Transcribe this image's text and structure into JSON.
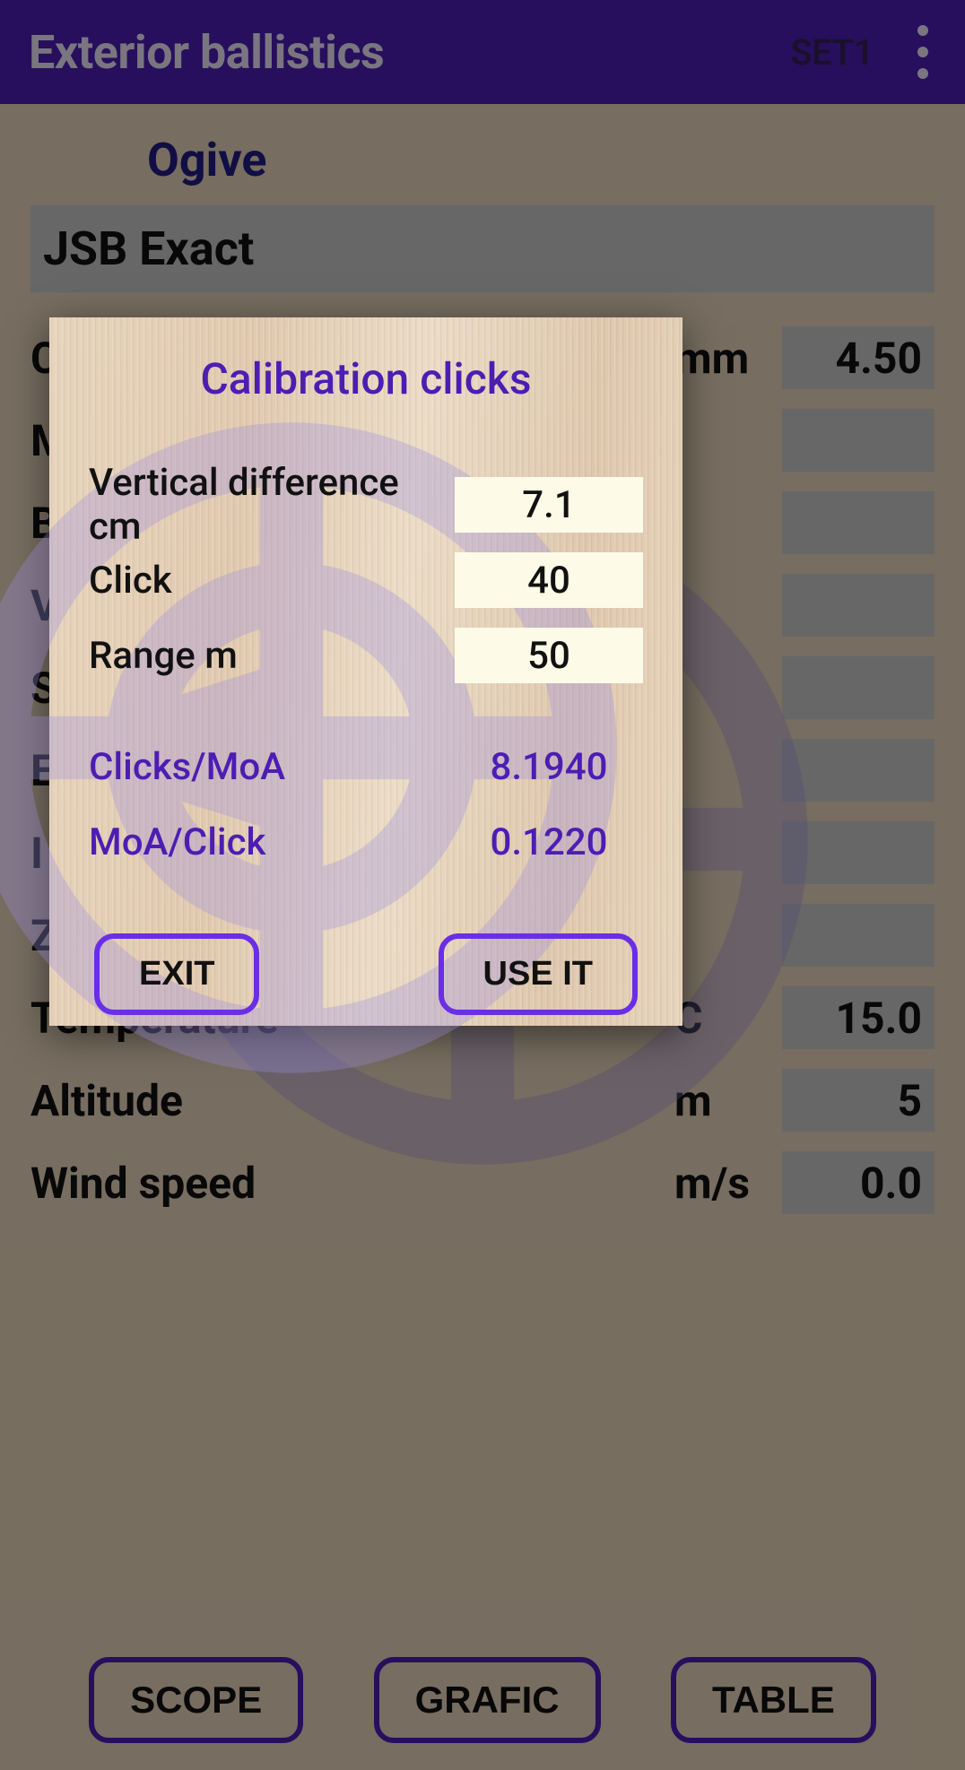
{
  "colors": {
    "primary": "#4d1db3",
    "accent_border": "#6a2ee6",
    "appbar_text": "#e8e3f5",
    "dark_text": "#111111",
    "input_bg": "#fdfbe8",
    "field_bg": "#c6c6c6",
    "logo": "#9a8ee0"
  },
  "appbar": {
    "title": "Exterior ballistics",
    "set_label": "SET1"
  },
  "main": {
    "ogive_label": "Ogive",
    "pellet_name": "JSB Exact",
    "params": [
      {
        "label": "Caliber",
        "unit": "mm",
        "value": "4.50"
      },
      {
        "label": "M",
        "unit": "",
        "value": ""
      },
      {
        "label": "B",
        "unit": "",
        "value": ""
      },
      {
        "label": "V",
        "unit": "",
        "value": ""
      },
      {
        "label": "S",
        "unit": "",
        "value": ""
      },
      {
        "label": "E",
        "unit": "",
        "value": ""
      },
      {
        "label": "I",
        "unit": "",
        "value": ""
      },
      {
        "label": "Z",
        "unit": "",
        "value": ""
      },
      {
        "label": "Temperature",
        "unit": "C",
        "value": "15.0"
      },
      {
        "label": "Altitude",
        "unit": "m",
        "value": "5"
      },
      {
        "label": "Wind speed",
        "unit": "m/s",
        "value": "0.0"
      }
    ],
    "buttons": {
      "scope": "SCOPE",
      "grafic": "GRAFIC",
      "table": "TABLE"
    }
  },
  "dialog": {
    "title": "Calibration clicks",
    "inputs": [
      {
        "label": "Vertical difference cm",
        "value": "7.1"
      },
      {
        "label": "Click",
        "value": "40"
      },
      {
        "label": "Range m",
        "value": "50"
      }
    ],
    "outputs": [
      {
        "label": "Clicks/MoA",
        "value": "8.1940"
      },
      {
        "label": "MoA/Click",
        "value": "0.1220"
      }
    ],
    "buttons": {
      "exit": "EXIT",
      "use": "USE IT"
    }
  }
}
